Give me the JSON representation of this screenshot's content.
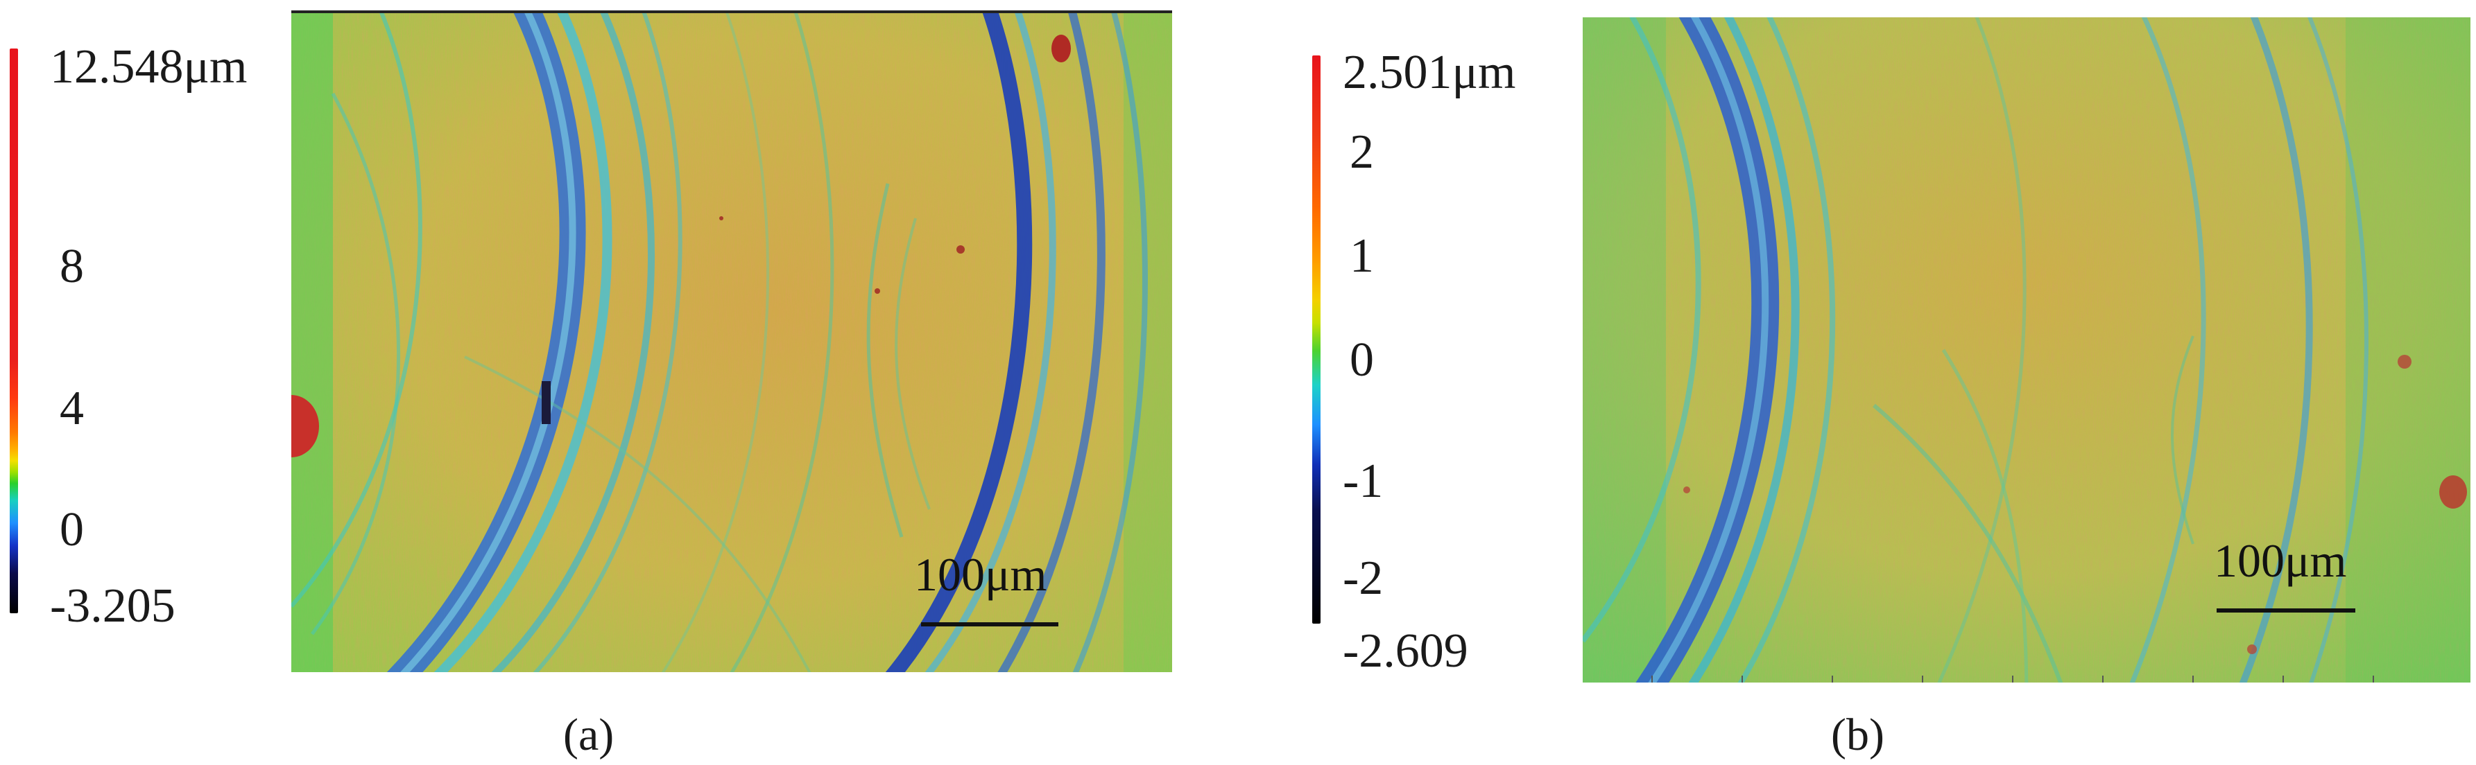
{
  "panel_a": {
    "colorbar": {
      "max_label": "12.548μm",
      "ticks": [
        "8",
        "4",
        "0"
      ],
      "min_label": "-3.205"
    },
    "scale_label": "100μm",
    "caption": "(a)"
  },
  "panel_b": {
    "colorbar": {
      "max_label": "2.501μm",
      "ticks": [
        "2",
        "1",
        "0",
        "-1",
        "-2"
      ],
      "min_label": "-2.609"
    },
    "scale_label": "100μm",
    "caption": "(b)"
  },
  "colors": {
    "surface_base": "#c9b54a",
    "groove_blue": "#2f73d6",
    "edge_green": "#3fcf6a",
    "peak_red": "#c8302a"
  }
}
